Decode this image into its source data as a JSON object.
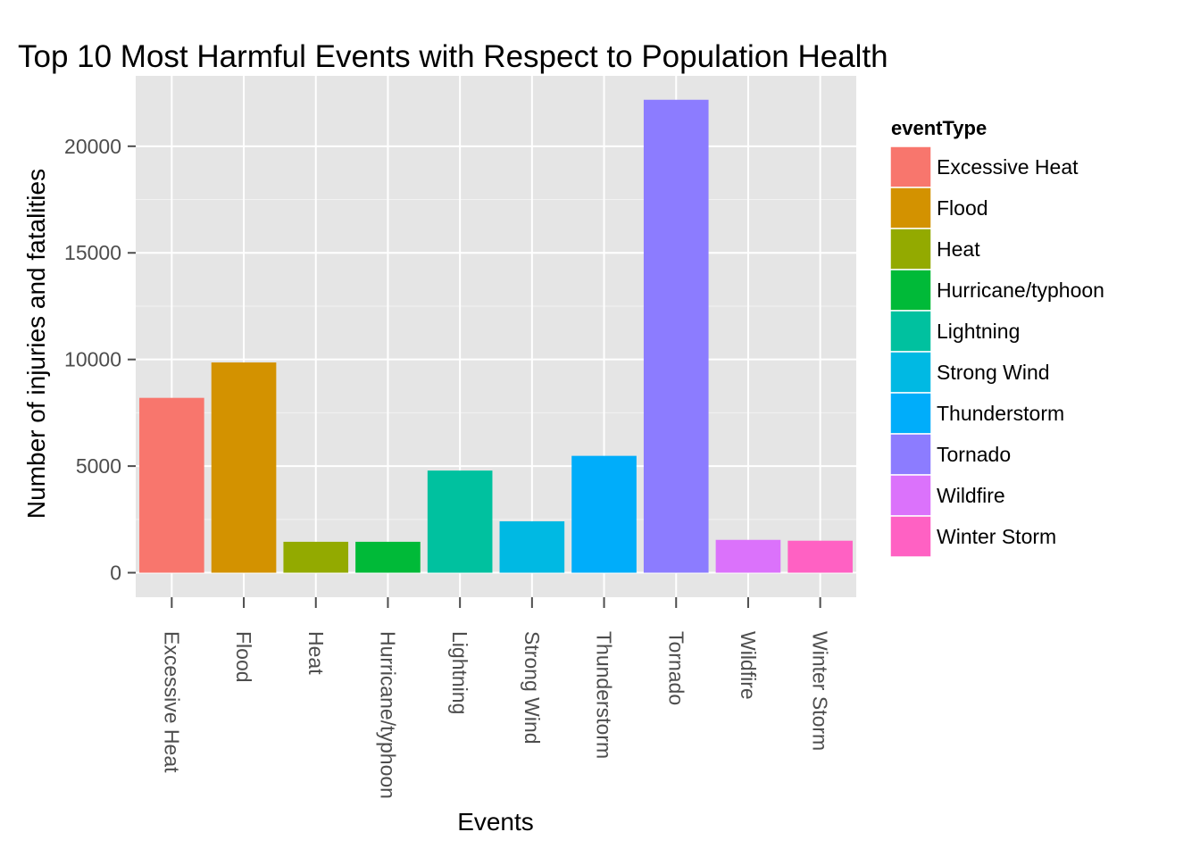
{
  "chart_data": {
    "type": "bar",
    "title": "Top 10 Most Harmful Events with Respect to Population Health",
    "xlabel": "Events",
    "ylabel": "Number of injuries and fatalities",
    "categories": [
      "Excessive Heat",
      "Flood",
      "Heat",
      "Hurricane/typhoon",
      "Lightning",
      "Strong Wind",
      "Thunderstorm",
      "Tornado",
      "Wildfire",
      "Winter Storm"
    ],
    "values": [
      8200,
      9860,
      1450,
      1450,
      4790,
      2410,
      5480,
      22180,
      1540,
      1500
    ],
    "colors": [
      "#F8766D",
      "#D39200",
      "#93AA00",
      "#00BA38",
      "#00C19F",
      "#00B9E3",
      "#00ADFA",
      "#8C7CFF",
      "#DB72FB",
      "#FF61C3"
    ],
    "ylim": [
      -1150,
      23300
    ],
    "yticks": [
      0,
      5000,
      10000,
      15000,
      20000
    ],
    "grid": true,
    "legend": {
      "title": "eventType",
      "position": "right"
    }
  }
}
